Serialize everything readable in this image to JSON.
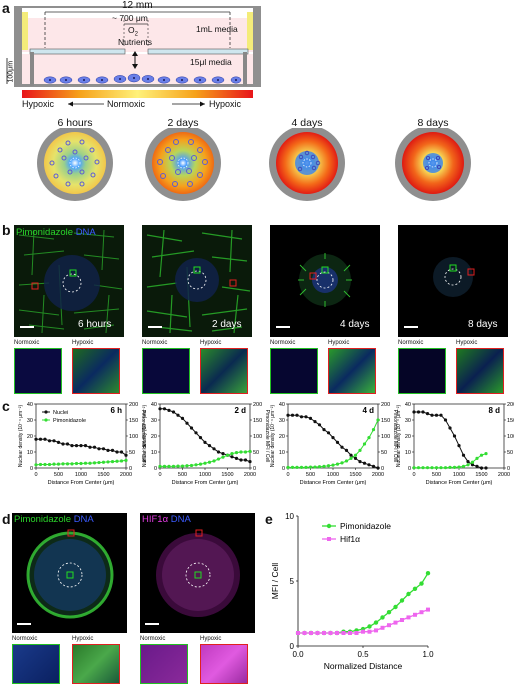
{
  "panels": [
    "a",
    "b",
    "c",
    "d",
    "e"
  ],
  "a": {
    "width_label": "12 mm",
    "gap_label": "~ 700 μm",
    "o2_label": "O",
    "o2_sub": "2",
    "nutrients_label": "Nutrients",
    "media_top": "1mL media",
    "media_bottom": "15μl media",
    "height_label": "100μm",
    "gradient_left": "Hypoxic",
    "gradient_mid": "Normoxic",
    "gradient_right": "Hypoxic",
    "timepoints": [
      "6 hours",
      "2 days",
      "4 days",
      "8 days"
    ]
  },
  "b": {
    "channel1": "Pimonidazole",
    "channel2": "DNA",
    "timepoints": [
      "6 hours",
      "2 days",
      "4 days",
      "8 days"
    ],
    "inset_labels": [
      "Normoxic",
      "Hypoxic"
    ]
  },
  "c": {
    "legend": [
      "Nuclei",
      "Pimonidazole"
    ],
    "ylabel_left": "Nuclear density (10⁻⁴ μm⁻²)",
    "ylabel_right": "Pimonidazole MFI / Cell",
    "xlabel": "Distance From Center (μm)",
    "colors": {
      "nuclei": "#111111",
      "pimo": "#33dd33"
    },
    "charts_tags": [
      "6 h",
      "2 d",
      "4 d",
      "8 d"
    ],
    "yticks_left": [
      "0",
      "10",
      "20",
      "30",
      "40"
    ],
    "yticks_right": [
      "0",
      "50",
      "100",
      "150",
      "200"
    ]
  },
  "d": {
    "left_ch1": "Pimonidazole",
    "left_ch2": "DNA",
    "right_ch1": "HIF1α",
    "right_ch2": "DNA",
    "inset_labels": [
      "Normoxic",
      "Hypoxic",
      "Normoxic",
      "Hypoxic"
    ]
  },
  "e": {
    "legend": [
      "Pimonidazole",
      "Hif1α"
    ],
    "ylabel": "MFI / Cell",
    "xlabel": "Normalized Distance",
    "colors": {
      "pimo": "#33dd33",
      "hif": "#ee66ee"
    }
  },
  "chart_data": [
    {
      "type": "line",
      "tag": "6 h",
      "xlabel": "Distance From Center (μm)",
      "ylabel": "Nuclear density (10⁻⁴ μm⁻²)",
      "y2label": "Pimonidazole MFI / Cell",
      "xlim": [
        0,
        2000
      ],
      "ylim": [
        0,
        40
      ],
      "y2lim": [
        0,
        200
      ],
      "x": [
        0,
        100,
        200,
        300,
        400,
        500,
        600,
        700,
        800,
        900,
        1000,
        1100,
        1200,
        1300,
        1400,
        1500,
        1600,
        1700,
        1800,
        1900,
        2000
      ],
      "series": [
        {
          "name": "Nuclei",
          "axis": "left",
          "values": [
            18,
            18,
            18,
            17,
            17,
            16,
            15,
            15,
            14,
            14,
            14,
            14,
            13,
            13,
            12,
            12,
            11,
            11,
            10,
            10,
            8
          ]
        },
        {
          "name": "Pimonidazole",
          "axis": "right",
          "values": [
            10,
            11,
            11,
            11,
            12,
            12,
            13,
            13,
            13,
            14,
            14,
            15,
            15,
            16,
            17,
            18,
            19,
            20,
            21,
            22,
            24
          ]
        }
      ]
    },
    {
      "type": "line",
      "tag": "2 d",
      "xlabel": "Distance From Center (μm)",
      "xlim": [
        0,
        2000
      ],
      "ylim": [
        0,
        40
      ],
      "y2lim": [
        0,
        200
      ],
      "x": [
        0,
        100,
        200,
        300,
        400,
        500,
        600,
        700,
        800,
        900,
        1000,
        1100,
        1200,
        1300,
        1400,
        1500,
        1600,
        1700,
        1800,
        1900,
        2000
      ],
      "series": [
        {
          "name": "Nuclei",
          "axis": "left",
          "values": [
            37,
            37,
            36,
            35,
            33,
            31,
            28,
            25,
            22,
            19,
            16,
            14,
            12,
            10,
            9,
            8,
            7,
            6,
            5,
            5,
            4
          ]
        },
        {
          "name": "Pimonidazole",
          "axis": "right",
          "values": [
            5,
            5,
            5,
            5,
            6,
            6,
            7,
            8,
            10,
            12,
            15,
            18,
            22,
            28,
            34,
            40,
            45,
            48,
            50,
            50,
            52
          ]
        }
      ]
    },
    {
      "type": "line",
      "tag": "4 d",
      "xlabel": "Distance From Center (μm)",
      "xlim": [
        0,
        2000
      ],
      "ylim": [
        0,
        40
      ],
      "y2lim": [
        0,
        200
      ],
      "x": [
        0,
        100,
        200,
        300,
        400,
        500,
        600,
        700,
        800,
        900,
        1000,
        1100,
        1200,
        1300,
        1400,
        1500,
        1600,
        1700,
        1800,
        1900,
        2000
      ],
      "series": [
        {
          "name": "Nuclei",
          "axis": "left",
          "values": [
            33,
            33,
            33,
            32,
            32,
            31,
            29,
            27,
            24,
            22,
            19,
            16,
            13,
            11,
            8,
            6,
            4,
            3,
            2,
            1,
            0
          ]
        },
        {
          "name": "Pimonidazole",
          "axis": "right",
          "values": [
            2,
            2,
            2,
            2,
            2,
            3,
            3,
            4,
            5,
            7,
            9,
            12,
            16,
            22,
            30,
            40,
            55,
            75,
            95,
            120,
            150
          ]
        }
      ]
    },
    {
      "type": "line",
      "tag": "8 d",
      "xlabel": "Distance From Center (μm)",
      "xlim": [
        0,
        2000
      ],
      "ylim": [
        0,
        40
      ],
      "y2lim": [
        0,
        200
      ],
      "x": [
        0,
        100,
        200,
        300,
        400,
        500,
        600,
        700,
        800,
        900,
        1000,
        1100,
        1200,
        1300,
        1400,
        1500,
        1600
      ],
      "series": [
        {
          "name": "Nuclei",
          "axis": "left",
          "values": [
            35,
            35,
            35,
            34,
            33,
            33,
            33,
            30,
            25,
            20,
            14,
            8,
            4,
            2,
            1,
            0,
            0
          ]
        },
        {
          "name": "Pimonidazole",
          "axis": "right",
          "values": [
            1,
            1,
            1,
            1,
            1,
            1,
            1,
            1,
            2,
            2,
            3,
            5,
            10,
            18,
            30,
            40,
            45
          ]
        }
      ]
    },
    {
      "type": "line",
      "tag": "e",
      "xlabel": "Normalized Distance",
      "ylabel": "MFI / Cell",
      "xlim": [
        0,
        1
      ],
      "ylim": [
        0,
        10
      ],
      "x": [
        0,
        0.05,
        0.1,
        0.15,
        0.2,
        0.25,
        0.3,
        0.35,
        0.4,
        0.45,
        0.5,
        0.55,
        0.6,
        0.65,
        0.7,
        0.75,
        0.8,
        0.85,
        0.9,
        0.95,
        1.0
      ],
      "series": [
        {
          "name": "Pimonidazole",
          "values": [
            1,
            1,
            1,
            1,
            1,
            1,
            1,
            1.1,
            1.1,
            1.2,
            1.3,
            1.5,
            1.8,
            2.2,
            2.6,
            3.0,
            3.5,
            4.0,
            4.4,
            4.8,
            5.6
          ]
        },
        {
          "name": "Hif1α",
          "values": [
            1,
            1,
            1,
            1,
            1,
            1,
            1,
            1,
            1,
            1,
            1.1,
            1.1,
            1.2,
            1.4,
            1.6,
            1.8,
            2.0,
            2.2,
            2.4,
            2.6,
            2.8
          ]
        }
      ]
    }
  ]
}
